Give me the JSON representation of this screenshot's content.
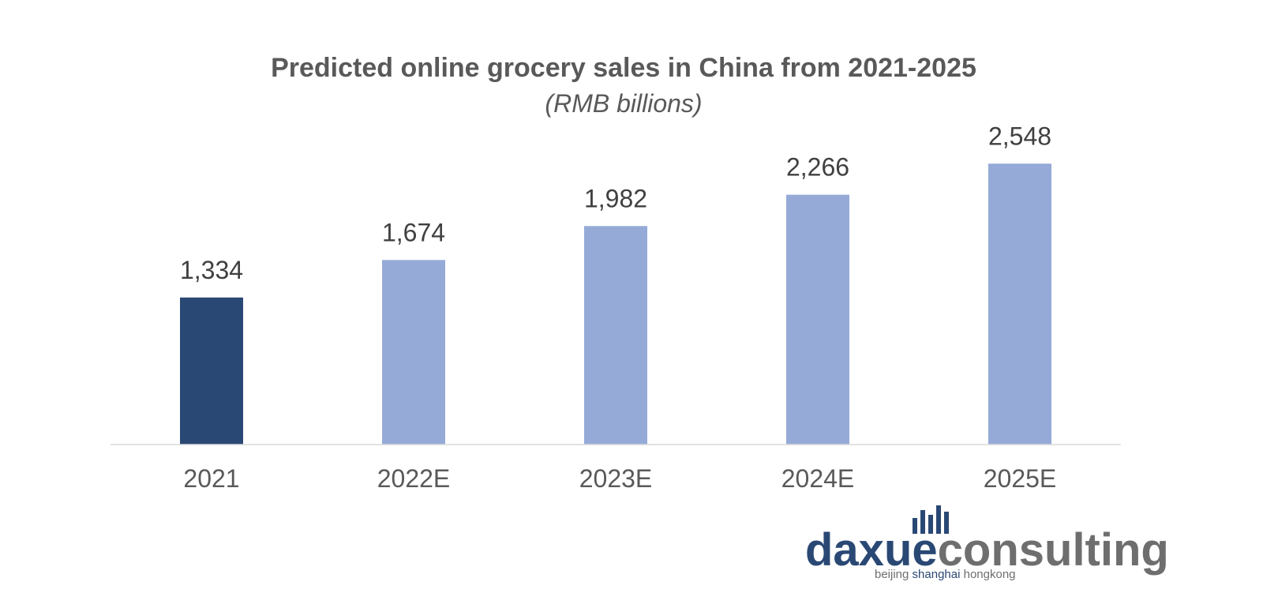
{
  "chart_data": {
    "type": "bar",
    "title": "Predicted online grocery sales in China from 2021-2025",
    "subtitle": "(RMB billions)",
    "categories": [
      "2021",
      "2022E",
      "2023E",
      "2024E",
      "2025E"
    ],
    "values": [
      1334,
      1674,
      1982,
      2266,
      2548
    ],
    "value_labels": [
      "1,334",
      "1,674",
      "1,982",
      "2,266",
      "2,548"
    ],
    "ylim": [
      0,
      2600
    ],
    "grid": false,
    "legend": "none",
    "highlight_index": 0,
    "colors": {
      "highlight": "#2a4874",
      "bar": "#95aad7",
      "axis": "#d9d9d9"
    }
  },
  "branding": {
    "logo_word_1": "daxue",
    "logo_word_2": "consulting",
    "tagline_1": "beijing ",
    "tagline_2": "shanghai",
    "tagline_3": " hongkong",
    "colors": {
      "primary": "#2a4874",
      "secondary": "#6e6e6e"
    }
  }
}
